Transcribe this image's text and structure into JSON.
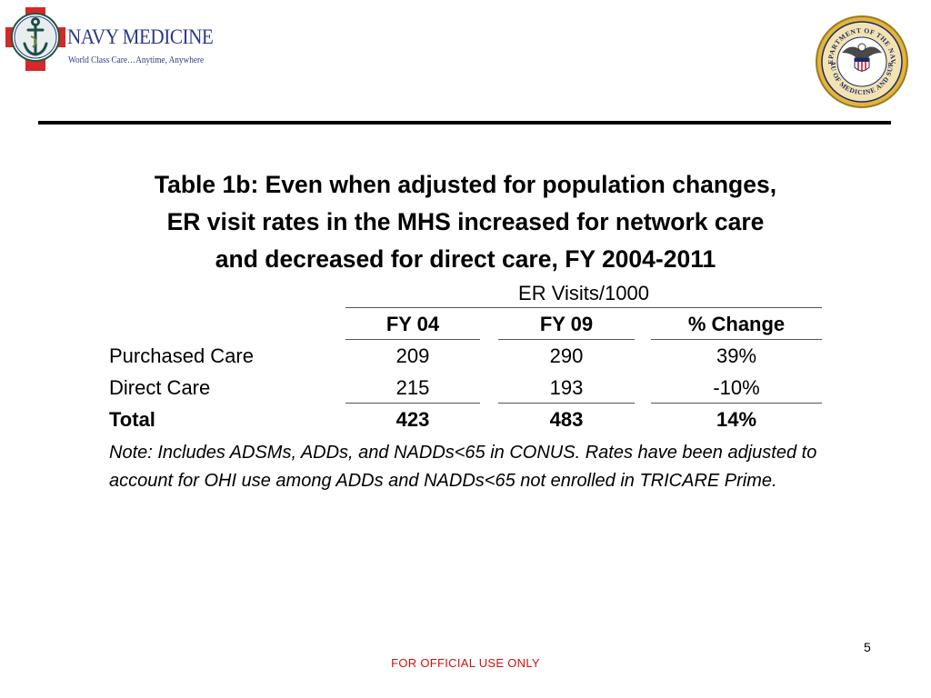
{
  "logo": {
    "title": "NAVY MEDICINE",
    "tagline": "World Class Care…Anytime, Anywhere"
  },
  "seal": {
    "top_text": "DEPARTMENT OF THE NAVY",
    "bottom_text": "BUREAU OF MEDICINE AND SURGERY"
  },
  "title_lines": [
    "Table 1b: Even when adjusted for population changes,",
    "ER visit rates in the MHS increased for network care",
    "and decreased for direct care, FY 2004-2011"
  ],
  "table": {
    "group_header": "ER Visits/1000",
    "columns": [
      "FY 04",
      "FY 09",
      "% Change"
    ],
    "rows": [
      {
        "label": "Purchased Care",
        "values": [
          "209",
          "290",
          "39%"
        ]
      },
      {
        "label": "Direct Care",
        "values": [
          "215",
          "193",
          "-10%"
        ]
      },
      {
        "label": "Total",
        "values": [
          "423",
          "483",
          "14%"
        ]
      }
    ]
  },
  "note": "Note: Includes ADSMs, ADDs, and NADDs<65 in CONUS. Rates have been adjusted to account for OHI use among ADDs and NADDs<65 not enrolled in TRICARE Prime.",
  "page_number": "5",
  "footer": "FOR OFFICIAL USE ONLY"
}
